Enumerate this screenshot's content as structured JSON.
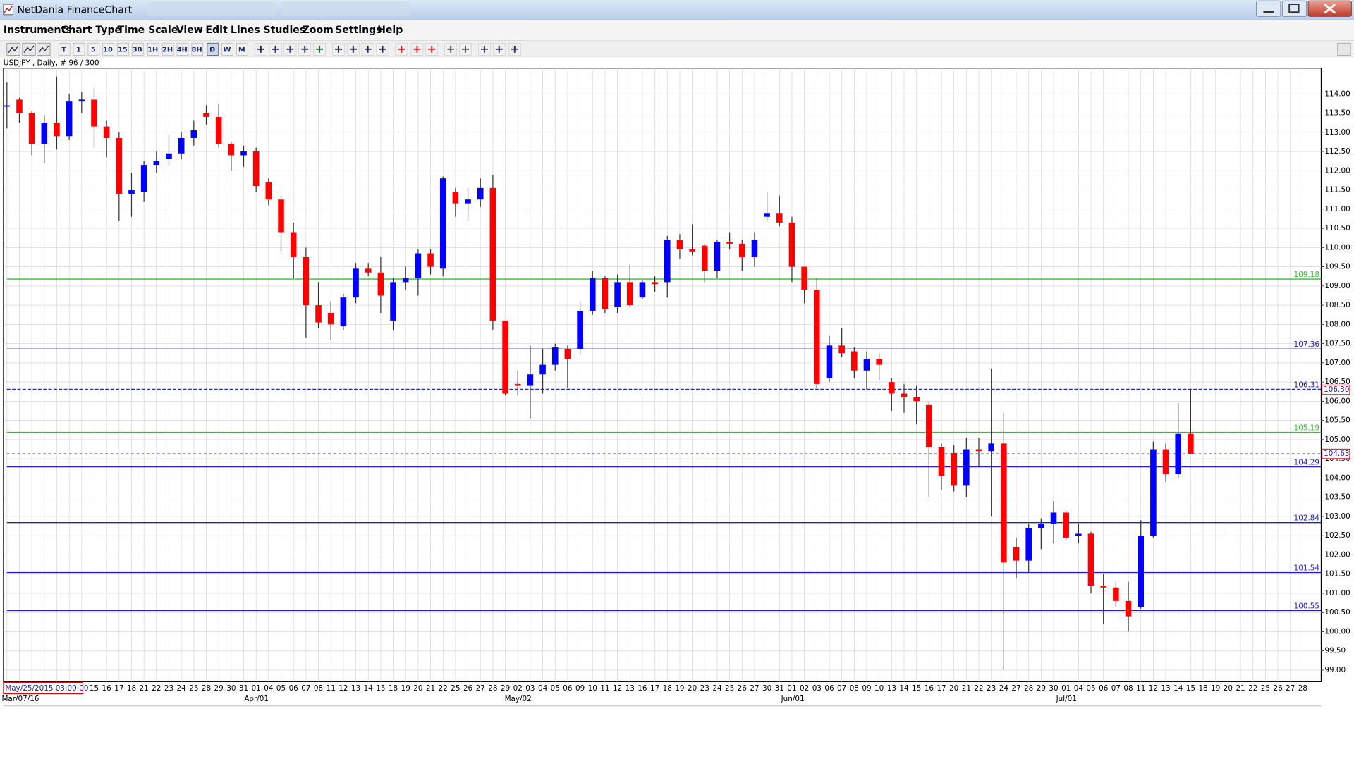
{
  "window": {
    "title": "NetDania FinanceChart"
  },
  "menu": [
    "Instruments",
    "Chart Type",
    "Time Scale",
    "View",
    "Edit",
    "Lines",
    "Studies",
    "Zoom",
    "Settings",
    "Help"
  ],
  "toolbar": [
    "T",
    "1",
    "5",
    "10",
    "15",
    "30",
    "1H",
    "2H",
    "4H",
    "8H",
    "D",
    "W",
    "M"
  ],
  "chart_data": {
    "type": "candlestick",
    "title": "USDJPY , Daily, # 96 / 300",
    "cursor_date": "May/25/2015 03:00:00",
    "month_labels": [
      "Mar/07/16",
      "Apr/01",
      "May/02",
      "Jun/01",
      "Jul/01"
    ],
    "categories": [
      null,
      null,
      null,
      null,
      null,
      null,
      null,
      "15",
      "16",
      "17",
      "18",
      "21",
      "22",
      "23",
      "24",
      "25",
      "28",
      "29",
      "30",
      "31",
      "01",
      "04",
      "05",
      "06",
      "07",
      "08",
      "11",
      "12",
      "13",
      "14",
      "15",
      "18",
      "19",
      "20",
      "21",
      "22",
      "25",
      "26",
      "27",
      "28",
      "29",
      "02",
      "03",
      "04",
      "05",
      "06",
      "09",
      "10",
      "11",
      "12",
      "13",
      "16",
      "17",
      "18",
      "19",
      "20",
      "23",
      "24",
      "25",
      "26",
      "27",
      "30",
      "31",
      "01",
      "02",
      "03",
      "06",
      "07",
      "08",
      "09",
      "10",
      "13",
      "14",
      "15",
      "16",
      "17",
      "20",
      "21",
      "22",
      "23",
      "24",
      "27",
      "28",
      "29",
      "30",
      "01",
      "04",
      "05",
      "06",
      "07",
      "08",
      "11",
      "12",
      "13",
      "14",
      "15",
      "18",
      "19",
      "20",
      "21",
      "22",
      "25",
      "26",
      "27",
      "28"
    ],
    "up_color": "#0000ff",
    "down_color": "#ff0000",
    "grid": true,
    "open": [
      113.7,
      113.85,
      113.5,
      112.7,
      113.25,
      112.9,
      113.8,
      113.85,
      113.15,
      112.85,
      111.4,
      111.45,
      112.15,
      112.3,
      112.45,
      112.85,
      113.5,
      113.4,
      112.7,
      112.4,
      112.5,
      111.7,
      111.25,
      110.4,
      109.75,
      108.5,
      108.3,
      107.95,
      108.7,
      109.45,
      109.35,
      108.1,
      109.1,
      109.2,
      109.85,
      109.45,
      111.45,
      111.15,
      111.25,
      111.55,
      108.1,
      106.45,
      106.4,
      106.7,
      106.95,
      107.35,
      107.35,
      108.35,
      109.2,
      108.45,
      109.1,
      108.7,
      109.1,
      109.1,
      110.2,
      109.95,
      110.05,
      109.4,
      110.15,
      110.1,
      109.75,
      110.8,
      110.9,
      110.65,
      109.5,
      108.9,
      106.6,
      107.45,
      107.3,
      106.8,
      107.1,
      106.5,
      106.2,
      106.1,
      105.9,
      104.8,
      104.65,
      103.8,
      104.75,
      104.7,
      104.9,
      102.2,
      101.85,
      102.7,
      102.8,
      103.1,
      102.5,
      102.55,
      101.2,
      101.15,
      100.8,
      100.65,
      102.5,
      104.75,
      104.1,
      105.15,
      null,
      null,
      null,
      null,
      null,
      null,
      null,
      null,
      null
    ],
    "high": [
      114.3,
      113.9,
      113.55,
      113.45,
      114.45,
      114.0,
      114.05,
      114.15,
      113.3,
      113.0,
      111.95,
      112.25,
      112.5,
      112.95,
      113.0,
      113.3,
      113.7,
      113.75,
      112.75,
      112.65,
      112.6,
      111.8,
      111.35,
      110.65,
      110.0,
      109.1,
      108.6,
      108.8,
      109.6,
      109.6,
      109.75,
      109.2,
      109.5,
      109.95,
      109.95,
      111.85,
      111.55,
      111.55,
      111.8,
      111.9,
      108.1,
      106.8,
      107.45,
      107.35,
      107.5,
      107.45,
      108.6,
      109.4,
      109.25,
      109.3,
      109.55,
      109.15,
      109.25,
      110.3,
      110.35,
      110.6,
      110.1,
      110.2,
      110.4,
      110.2,
      110.4,
      111.45,
      111.35,
      110.8,
      109.5,
      109.2,
      107.7,
      107.9,
      107.4,
      107.3,
      107.25,
      106.6,
      106.45,
      106.4,
      106.0,
      104.9,
      104.85,
      105.05,
      105.05,
      106.85,
      105.7,
      102.45,
      102.8,
      102.95,
      103.4,
      103.15,
      102.8,
      102.6,
      101.5,
      101.3,
      101.3,
      102.9,
      104.95,
      104.9,
      105.95,
      106.3,
      null,
      null,
      null,
      null,
      null,
      null,
      null,
      null,
      null
    ],
    "low": [
      113.1,
      113.25,
      112.4,
      112.2,
      112.55,
      112.8,
      113.5,
      112.6,
      112.35,
      110.7,
      110.8,
      111.2,
      111.95,
      112.15,
      112.3,
      112.65,
      113.2,
      112.6,
      112.0,
      112.1,
      111.45,
      111.1,
      109.9,
      109.2,
      107.65,
      107.9,
      107.6,
      107.85,
      108.55,
      109.25,
      108.3,
      107.85,
      108.9,
      108.75,
      109.3,
      109.25,
      110.8,
      110.7,
      111.05,
      107.85,
      106.15,
      106.15,
      105.55,
      106.2,
      106.8,
      106.35,
      107.2,
      108.25,
      108.3,
      108.3,
      108.45,
      108.65,
      108.85,
      108.7,
      109.7,
      109.8,
      109.1,
      109.2,
      109.95,
      109.4,
      109.5,
      110.7,
      110.55,
      109.1,
      108.55,
      106.35,
      106.5,
      107.15,
      106.6,
      106.3,
      106.55,
      105.75,
      105.7,
      105.4,
      103.5,
      103.7,
      103.65,
      103.5,
      104.3,
      103.0,
      99.0,
      101.4,
      101.55,
      102.15,
      102.3,
      102.4,
      102.3,
      101.0,
      100.2,
      100.65,
      100.0,
      100.6,
      102.45,
      103.9,
      104.0,
      104.63,
      null,
      null,
      null,
      null,
      null,
      null,
      null,
      null,
      null
    ],
    "close": [
      113.7,
      113.5,
      112.7,
      113.25,
      112.9,
      113.8,
      113.85,
      113.15,
      112.85,
      111.4,
      111.5,
      112.15,
      112.25,
      112.45,
      112.85,
      113.05,
      113.4,
      112.7,
      112.4,
      112.5,
      111.6,
      111.25,
      110.4,
      109.75,
      108.5,
      108.05,
      108.0,
      108.7,
      109.45,
      109.35,
      108.75,
      109.1,
      109.2,
      109.85,
      109.5,
      111.8,
      111.15,
      111.25,
      111.55,
      108.1,
      106.2,
      106.4,
      106.7,
      106.95,
      107.4,
      107.1,
      108.35,
      109.2,
      108.4,
      109.1,
      108.5,
      109.1,
      109.05,
      110.2,
      109.95,
      109.9,
      109.4,
      110.15,
      110.1,
      109.75,
      110.2,
      110.9,
      110.65,
      109.5,
      108.9,
      106.45,
      107.45,
      107.25,
      106.8,
      107.1,
      106.95,
      106.2,
      106.1,
      106.0,
      104.8,
      104.05,
      103.8,
      104.75,
      104.7,
      104.9,
      101.8,
      101.85,
      102.7,
      102.8,
      103.1,
      102.45,
      102.55,
      101.2,
      101.15,
      100.8,
      100.4,
      102.5,
      104.75,
      104.1,
      105.15,
      104.63,
      null,
      null,
      null,
      null,
      null,
      null,
      null,
      null,
      null
    ],
    "levels": [
      {
        "value": 109.18,
        "color": "#22cc22",
        "dashed": false
      },
      {
        "value": 107.36,
        "color": "#2222cc",
        "dashed": false
      },
      {
        "value": 106.31,
        "color": "#1a1a80",
        "dashed": true
      },
      {
        "value": 105.19,
        "color": "#22cc22",
        "dashed": false
      },
      {
        "value": 104.29,
        "color": "#2222cc",
        "dashed": false
      },
      {
        "value": 102.84,
        "color": "#2222cc",
        "dashed": false
      },
      {
        "value": 101.54,
        "color": "#2222cc",
        "dashed": false
      },
      {
        "value": 100.55,
        "color": "#2222cc",
        "dashed": false
      }
    ],
    "price_markers": [
      {
        "value": 106.3,
        "label": "106.30"
      },
      {
        "value": 104.63,
        "label": "104.63"
      }
    ],
    "ylim": [
      98.7,
      114.67
    ],
    "yticks": [
      {
        "value": 114,
        "label": "114.00"
      },
      {
        "value": 113.5,
        "label": "113.50"
      },
      {
        "value": 113,
        "label": "113.00"
      },
      {
        "value": 112.5,
        "label": "112.50"
      },
      {
        "value": 112,
        "label": "112.00"
      },
      {
        "value": 111.5,
        "label": "111.50"
      },
      {
        "value": 111,
        "label": "111.00"
      },
      {
        "value": 110.5,
        "label": "110.50"
      },
      {
        "value": 110,
        "label": "110.00"
      },
      {
        "value": 109.5,
        "label": "109.50"
      },
      {
        "value": 109,
        "label": "109.00"
      },
      {
        "value": 108.5,
        "label": "108.50"
      },
      {
        "value": 108,
        "label": "108.00"
      },
      {
        "value": 107.5,
        "label": "107.50"
      },
      {
        "value": 107,
        "label": "107.00"
      },
      {
        "value": 106.5,
        "label": "106.50"
      },
      {
        "value": 106,
        "label": "106.00"
      },
      {
        "value": 105.5,
        "label": "105.50"
      },
      {
        "value": 105,
        "label": "105.00"
      },
      {
        "value": 104.5,
        "label": "104.50"
      },
      {
        "value": 104,
        "label": "104.00"
      },
      {
        "value": 103.5,
        "label": "103.50"
      },
      {
        "value": 103,
        "label": "103.00"
      },
      {
        "value": 102.5,
        "label": "102.50"
      },
      {
        "value": 102,
        "label": "102.00"
      },
      {
        "value": 101.5,
        "label": "101.50"
      },
      {
        "value": 101,
        "label": "101.00"
      },
      {
        "value": 100.5,
        "label": "100.50"
      },
      {
        "value": 100,
        "label": "100.00"
      },
      {
        "value": 99.5,
        "label": "99.50"
      },
      {
        "value": 99,
        "label": "99.00"
      }
    ]
  }
}
